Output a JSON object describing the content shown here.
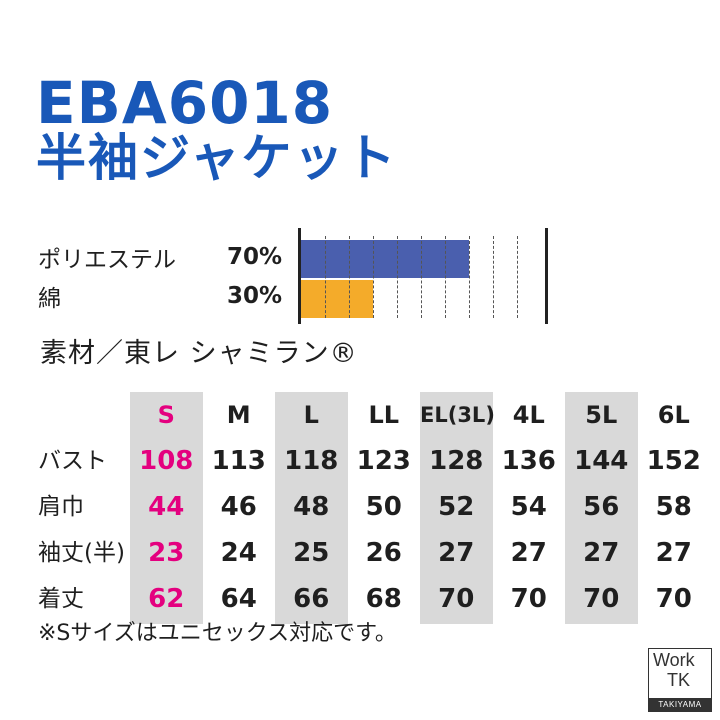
{
  "product": {
    "code": "EBA6018",
    "name": "半袖ジャケット"
  },
  "composition": [
    {
      "name": "ポリエステル",
      "percent_label": "70%",
      "value": 70,
      "color": "#4a5fae"
    },
    {
      "name": "綿",
      "percent_label": "30%",
      "value": 30,
      "color": "#f4ab2a"
    }
  ],
  "material": "素材／東レ シャミラン®",
  "size_table": {
    "sizes": [
      "S",
      "M",
      "L",
      "LL",
      "EL(3L)",
      "4L",
      "5L",
      "6L"
    ],
    "rows": [
      {
        "label": "バスト",
        "values": [
          "108",
          "113",
          "118",
          "123",
          "128",
          "136",
          "144",
          "152"
        ]
      },
      {
        "label": "肩巾",
        "values": [
          "44",
          "46",
          "48",
          "50",
          "52",
          "54",
          "56",
          "58"
        ]
      },
      {
        "label": "袖丈(半)",
        "values": [
          "23",
          "24",
          "25",
          "26",
          "27",
          "27",
          "27",
          "27"
        ]
      },
      {
        "label": "着丈",
        "values": [
          "62",
          "64",
          "66",
          "68",
          "70",
          "70",
          "70",
          "70"
        ]
      }
    ],
    "highlight_color": "#e4007f"
  },
  "note": "※Sサイズはユニセックス対応です。",
  "logo": {
    "line1": "Work",
    "line2": "TK",
    "line3": "TAKIYAMA"
  }
}
